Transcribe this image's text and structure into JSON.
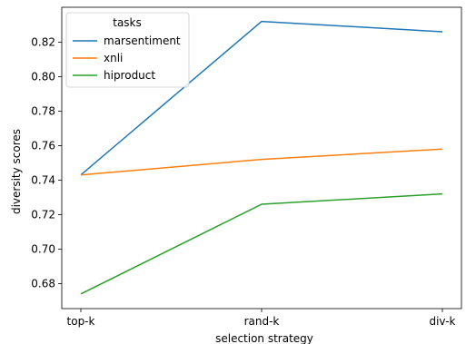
{
  "chart_data": {
    "type": "line",
    "categories": [
      "top-k",
      "rand-k",
      "div-k"
    ],
    "series": [
      {
        "name": "marsentiment",
        "color": "#1f77b4",
        "values": [
          0.743,
          0.832,
          0.826
        ]
      },
      {
        "name": "xnli",
        "color": "#ff7f0e",
        "values": [
          0.743,
          0.752,
          0.758
        ]
      },
      {
        "name": "hiproduct",
        "color": "#2ca02c",
        "values": [
          0.674,
          0.726,
          0.732
        ]
      }
    ],
    "xlabel": "selection strategy",
    "ylabel": "diversity scores",
    "ylim": [
      0.6655,
      0.8402
    ],
    "yticks": [
      0.68,
      0.7,
      0.72,
      0.74,
      0.76,
      0.78,
      0.8,
      0.82
    ],
    "ytick_labels": [
      "0.68",
      "0.70",
      "0.72",
      "0.74",
      "0.76",
      "0.78",
      "0.80",
      "0.82"
    ],
    "legend_title": "tasks",
    "legend_position": "upper-left",
    "grid": false
  }
}
